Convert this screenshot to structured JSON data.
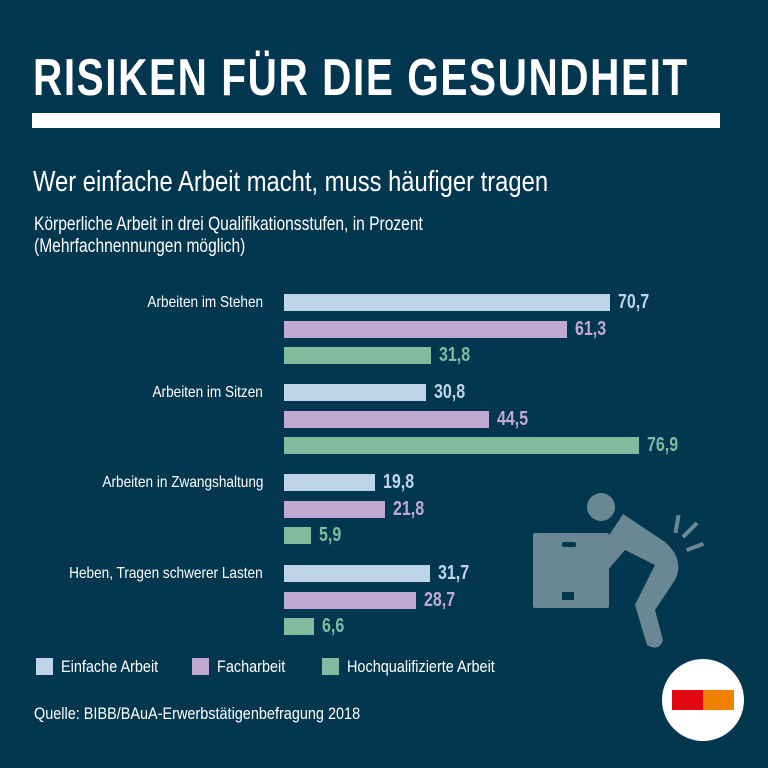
{
  "header": {
    "title": "RISIKEN FÜR DIE GESUNDHEIT",
    "subtitle": "Wer einfache Arbeit macht, muss häufiger tragen",
    "description_line1": "Körperliche Arbeit in drei Qualifikationsstufen, in Prozent",
    "description_line2": "(Mehrfachnennungen möglich)"
  },
  "chart_data": {
    "type": "bar",
    "orientation": "horizontal",
    "categories": [
      "Arbeiten im Stehen",
      "Arbeiten im Sitzen",
      "Arbeiten in Zwangshaltung",
      "Heben, Tragen schwerer Lasten"
    ],
    "series": [
      {
        "name": "Einfache Arbeit",
        "color": "#bed5e9",
        "values": [
          70.7,
          30.8,
          19.8,
          31.7
        ],
        "labels": [
          "70,7",
          "30,8",
          "19,8",
          "31,7"
        ]
      },
      {
        "name": "Facharbeit",
        "color": "#c2a9d2",
        "values": [
          61.3,
          44.5,
          21.8,
          28.7
        ],
        "labels": [
          "61,3",
          "44,5",
          "21,8",
          "28,7"
        ]
      },
      {
        "name": "Hochqualifizierte Arbeit",
        "color": "#80bba0",
        "values": [
          31.8,
          76.9,
          5.9,
          6.6
        ],
        "labels": [
          "31,8",
          "76,9",
          "5,9",
          "6,6"
        ]
      }
    ],
    "xlim": [
      0,
      100
    ],
    "grid": false,
    "legend_position": "bottom-left"
  },
  "footer": {
    "source": "Quelle: BIBB/BAuA-Erwerbstätigenbefragung 2018"
  },
  "colors": {
    "background": "#03374f",
    "icon": "#6a8894",
    "logo_red": "#e30613",
    "logo_orange": "#f08000"
  },
  "icons": {
    "illustration": "person-lifting-box-back-pain-icon",
    "logo": "red-orange-bar-logo"
  }
}
